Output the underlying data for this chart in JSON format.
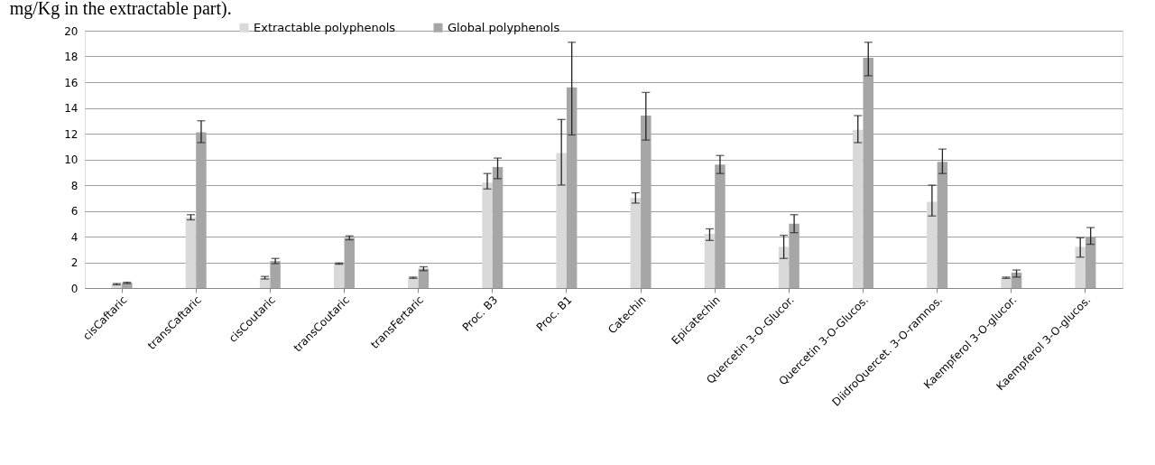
{
  "chart_data": {
    "type": "bar",
    "annotations": [
      "mg/Kg in the extractable part)."
    ],
    "categories": [
      "cisCaftaric",
      "transCaftaric",
      "cisCoutaric",
      "transCoutaric",
      "transFertaric",
      "Proc. B3",
      "Proc. B1",
      "Catechin",
      "Epicatechin",
      "Quercetin 3-O-Glucor.",
      "Quercetin 3-O-Glucos.",
      "DiidroQuercet. 3-O-ramnos.",
      "Kaempferol 3-O-glucor.",
      "Kaempferol 3-O-glucos."
    ],
    "series": [
      {
        "name": "Extractable polyphenols",
        "color": "#d9d9d9",
        "values": [
          0.3,
          5.5,
          0.8,
          1.9,
          0.8,
          8.2,
          10.5,
          7.0,
          4.2,
          3.2,
          12.3,
          6.7,
          0.8,
          3.2
        ],
        "errors": [
          0.05,
          [
            5.3,
            5.7
          ],
          [
            0.7,
            0.9
          ],
          0.05,
          0.05,
          [
            7.7,
            8.9
          ],
          [
            8.0,
            13.1
          ],
          [
            6.6,
            7.4
          ],
          [
            3.7,
            4.6
          ],
          [
            2.3,
            4.1
          ],
          [
            11.3,
            13.4
          ],
          [
            5.6,
            8.0
          ],
          0.05,
          [
            2.4,
            3.9
          ]
        ]
      },
      {
        "name": "Global polyphenols",
        "color": "#a6a6a6",
        "values": [
          0.4,
          12.1,
          2.1,
          3.9,
          1.5,
          9.4,
          15.6,
          13.4,
          9.6,
          5.0,
          17.9,
          9.8,
          1.2,
          4.0
        ],
        "errors": [
          0.05,
          [
            11.3,
            13.0
          ],
          [
            1.9,
            2.3
          ],
          [
            3.75,
            4.05
          ],
          [
            1.35,
            1.65
          ],
          [
            8.5,
            10.1
          ],
          [
            11.9,
            19.1
          ],
          [
            11.5,
            15.2
          ],
          [
            8.9,
            10.3
          ],
          [
            4.3,
            5.7
          ],
          [
            16.5,
            19.1
          ],
          [
            8.9,
            10.8
          ],
          [
            0.85,
            1.4
          ],
          [
            3.4,
            4.7
          ]
        ]
      }
    ],
    "ylim": [
      0,
      20
    ],
    "yticks": [
      0,
      2,
      4,
      6,
      8,
      10,
      12,
      14,
      16,
      18,
      20
    ],
    "grid": "y",
    "legend": "top"
  }
}
